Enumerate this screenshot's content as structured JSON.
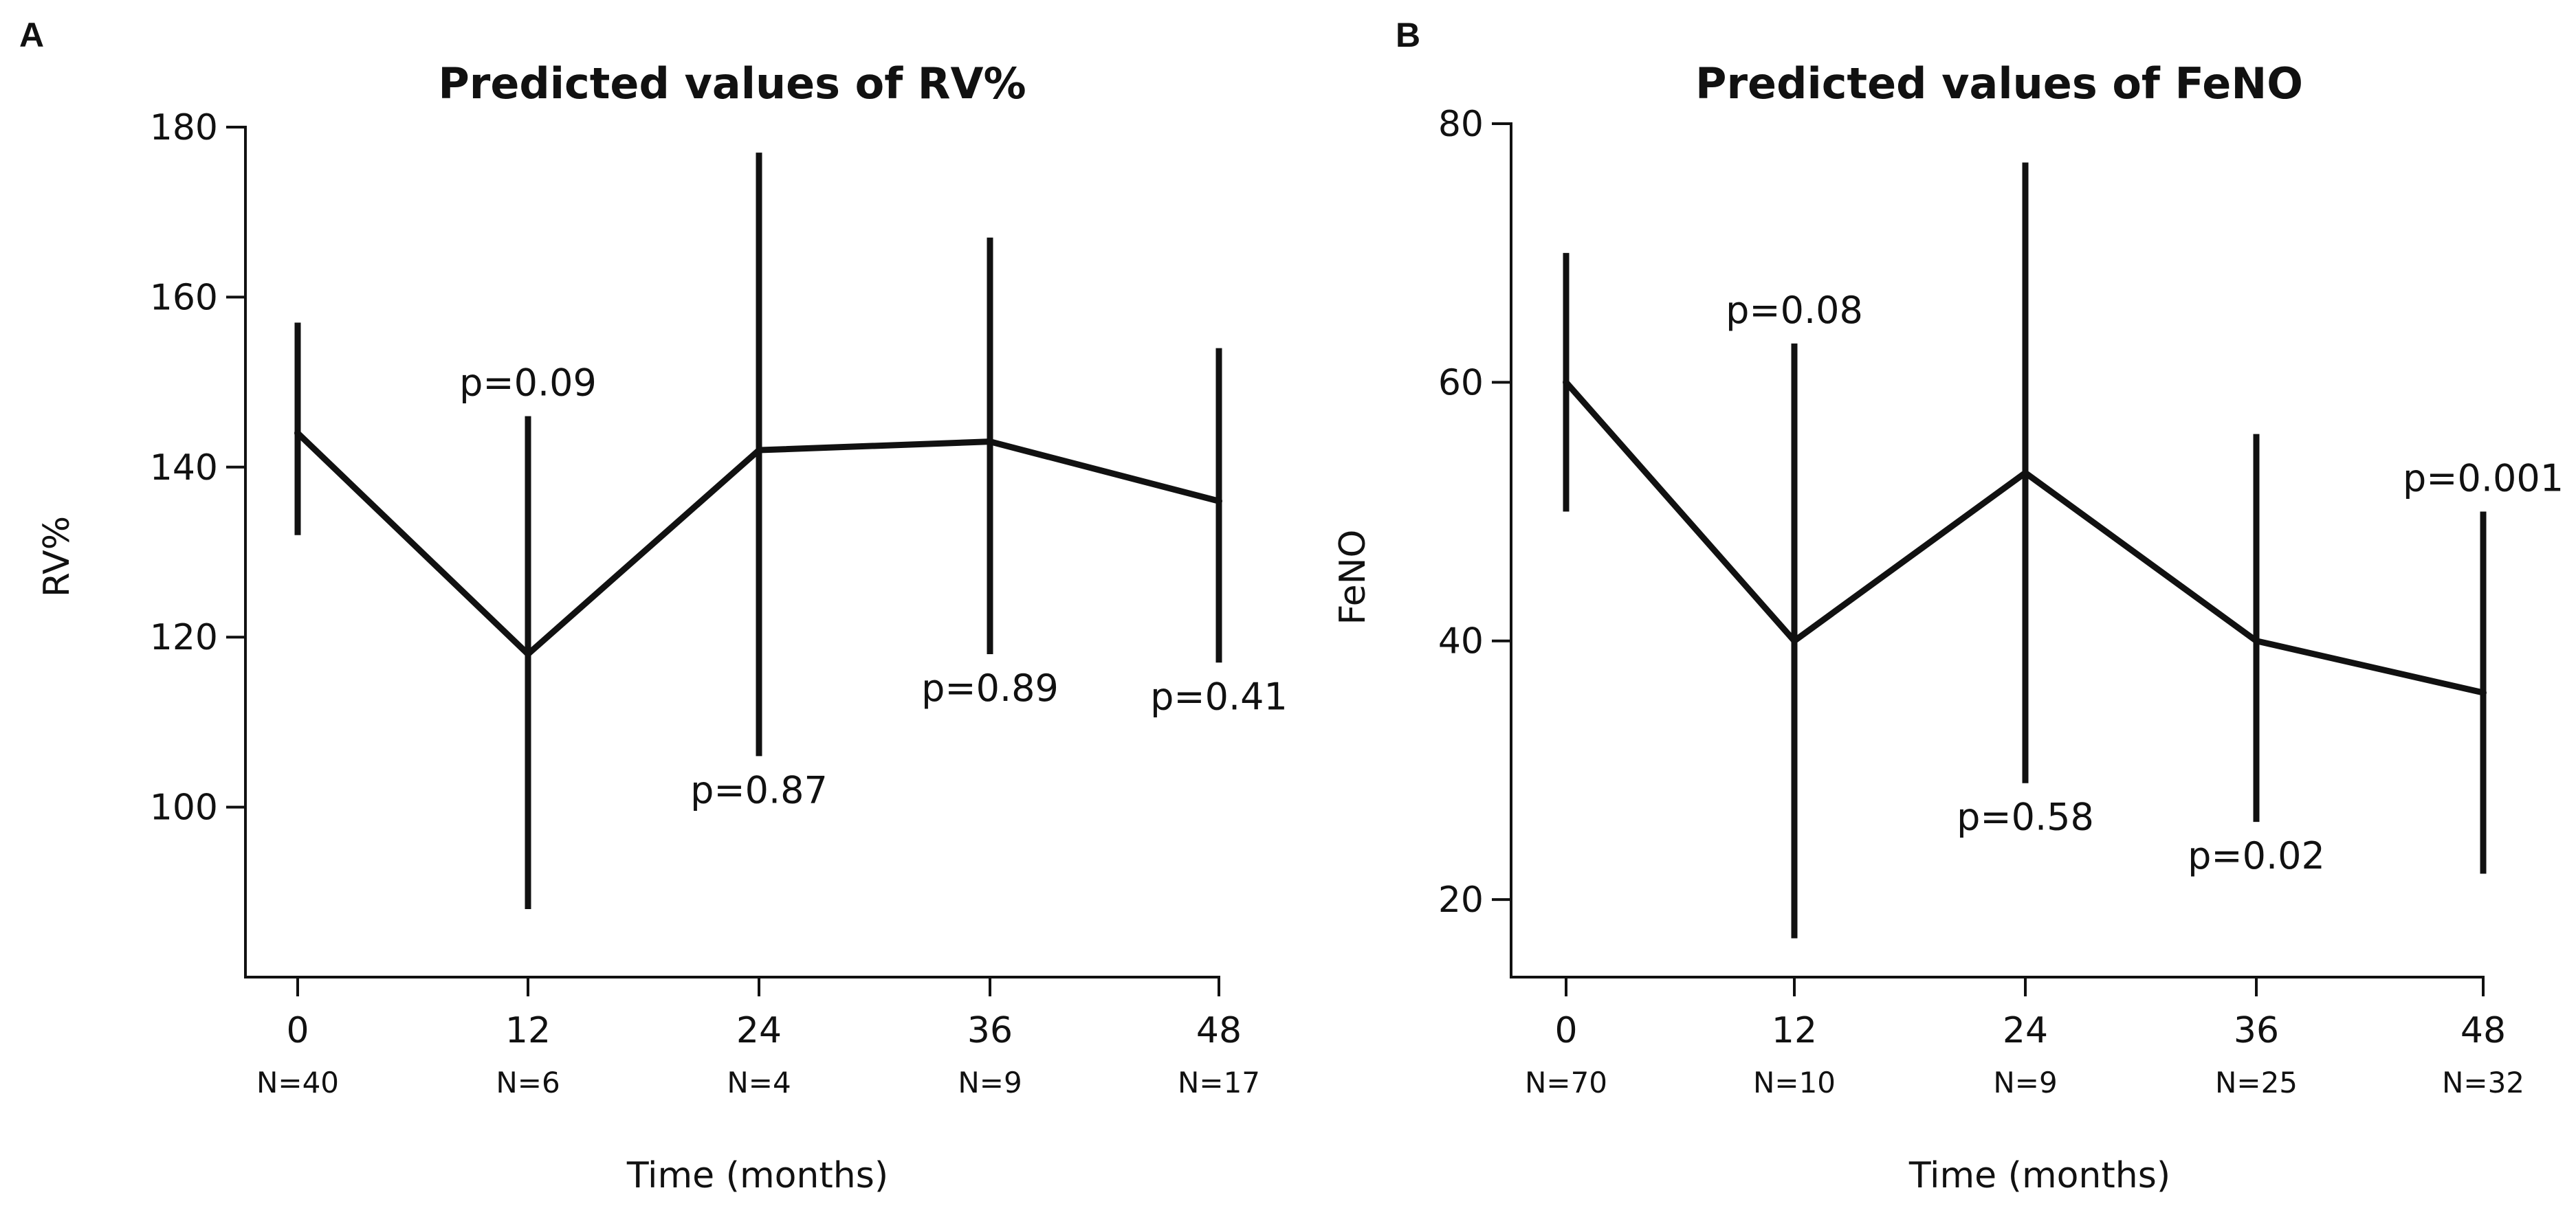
{
  "chart_data": [
    {
      "type": "line",
      "panel": "A",
      "title": "Predicted values of RV%",
      "xlabel": "Time (months)",
      "ylabel": "RV%",
      "ylim": [
        80,
        180
      ],
      "yticks": [
        100,
        120,
        140,
        160,
        180
      ],
      "x": [
        0,
        12,
        24,
        36,
        48
      ],
      "x_tick_labels": [
        "0",
        "12",
        "24",
        "36",
        "48"
      ],
      "n_labels": [
        "N=40",
        "N=6",
        "N=4",
        "N=9",
        "N=17"
      ],
      "values": [
        144,
        118,
        142,
        143,
        136
      ],
      "lower": [
        132,
        88,
        106,
        118,
        117
      ],
      "upper": [
        157,
        146,
        177,
        167,
        154
      ],
      "p_labels": [
        null,
        "p=0.09",
        "p=0.87",
        "p=0.89",
        "p=0.41"
      ],
      "p_positions": [
        null,
        "above",
        "below",
        "below",
        "below"
      ]
    },
    {
      "type": "line",
      "panel": "B",
      "title": "Predicted values of FeNO",
      "xlabel": "Time (months)",
      "ylabel": "FeNO",
      "ylim": [
        14,
        80
      ],
      "yticks": [
        20,
        40,
        60,
        80
      ],
      "x": [
        0,
        12,
        24,
        36,
        48
      ],
      "x_tick_labels": [
        "0",
        "12",
        "24",
        "36",
        "48"
      ],
      "n_labels": [
        "N=70",
        "N=10",
        "N=9",
        "N=25",
        "N=32"
      ],
      "values": [
        60,
        40,
        53,
        40,
        36
      ],
      "lower": [
        50,
        17,
        29,
        26,
        22
      ],
      "upper": [
        70,
        63,
        77,
        56,
        50
      ],
      "p_labels": [
        null,
        "p=0.08",
        "p=0.58",
        "p=0.02",
        "p=0.001"
      ],
      "p_positions": [
        null,
        "above",
        "below",
        "below",
        "above"
      ]
    }
  ]
}
